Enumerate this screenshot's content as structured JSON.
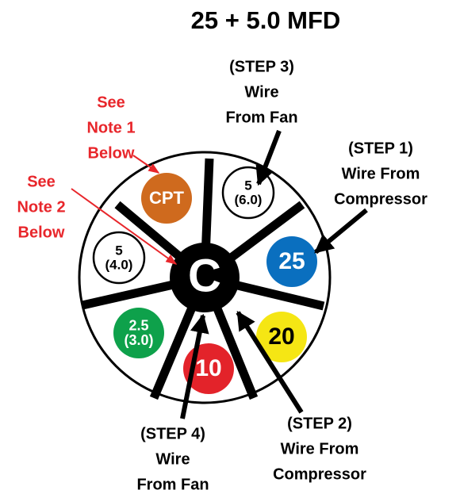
{
  "title": "25 + 5.0 MFD",
  "hub": {
    "label": "C"
  },
  "terminals": [
    {
      "lines": [
        "CPT"
      ]
    },
    {
      "lines": [
        "5",
        "(6.0)"
      ]
    },
    {
      "lines": [
        "25"
      ]
    },
    {
      "lines": [
        "20"
      ]
    },
    {
      "lines": [
        "10"
      ]
    },
    {
      "lines": [
        "2.5",
        "(3.0)"
      ]
    },
    {
      "lines": [
        "5",
        "(4.0)"
      ]
    }
  ],
  "callouts": [
    {
      "lines": [
        "(STEP 3)",
        "Wire",
        "From Fan"
      ]
    },
    {
      "lines": [
        "(STEP 1)",
        "Wire From",
        "Compressor"
      ]
    },
    {
      "lines": [
        "See",
        "Note 1",
        "Below"
      ]
    },
    {
      "lines": [
        "See",
        "Note 2",
        "Below"
      ]
    },
    {
      "lines": [
        "(STEP 4)",
        "Wire",
        "From Fan"
      ]
    },
    {
      "lines": [
        "(STEP 2)",
        "Wire From",
        "Compressor"
      ]
    }
  ]
}
